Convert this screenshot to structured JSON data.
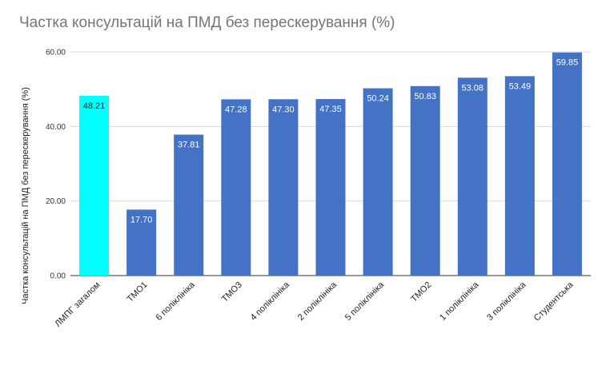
{
  "chart_data": {
    "type": "bar",
    "title": "Частка консультацій на ПМД без перескерування (%)",
    "xlabel": "",
    "ylabel": "Частка консультацій на ПМД без перескерування (%)",
    "ylim": [
      0,
      60
    ],
    "yticks": [
      "0.00",
      "20.00",
      "40.00",
      "60.00"
    ],
    "categories": [
      "ЛМПГ загалом",
      "ТМО1",
      "6 поліклініка",
      "ТМО3",
      "4 поліклініка",
      "2 поліклініка",
      "5 поліклініка",
      "ТМО2",
      "1 поліклініка",
      "3 поліклініка",
      "Студентська"
    ],
    "values": [
      48.21,
      17.7,
      37.81,
      47.28,
      47.3,
      47.35,
      50.24,
      50.83,
      53.08,
      53.49,
      59.85
    ],
    "value_labels": [
      "48.21",
      "17.70",
      "37.81",
      "47.28",
      "47.30",
      "47.35",
      "50.24",
      "50.83",
      "53.08",
      "53.49",
      "59.85"
    ],
    "colors": [
      "#00ffff",
      "#4472c4",
      "#4472c4",
      "#4472c4",
      "#4472c4",
      "#4472c4",
      "#4472c4",
      "#4472c4",
      "#4472c4",
      "#4472c4",
      "#4472c4"
    ],
    "grid": true,
    "legend": "none"
  }
}
